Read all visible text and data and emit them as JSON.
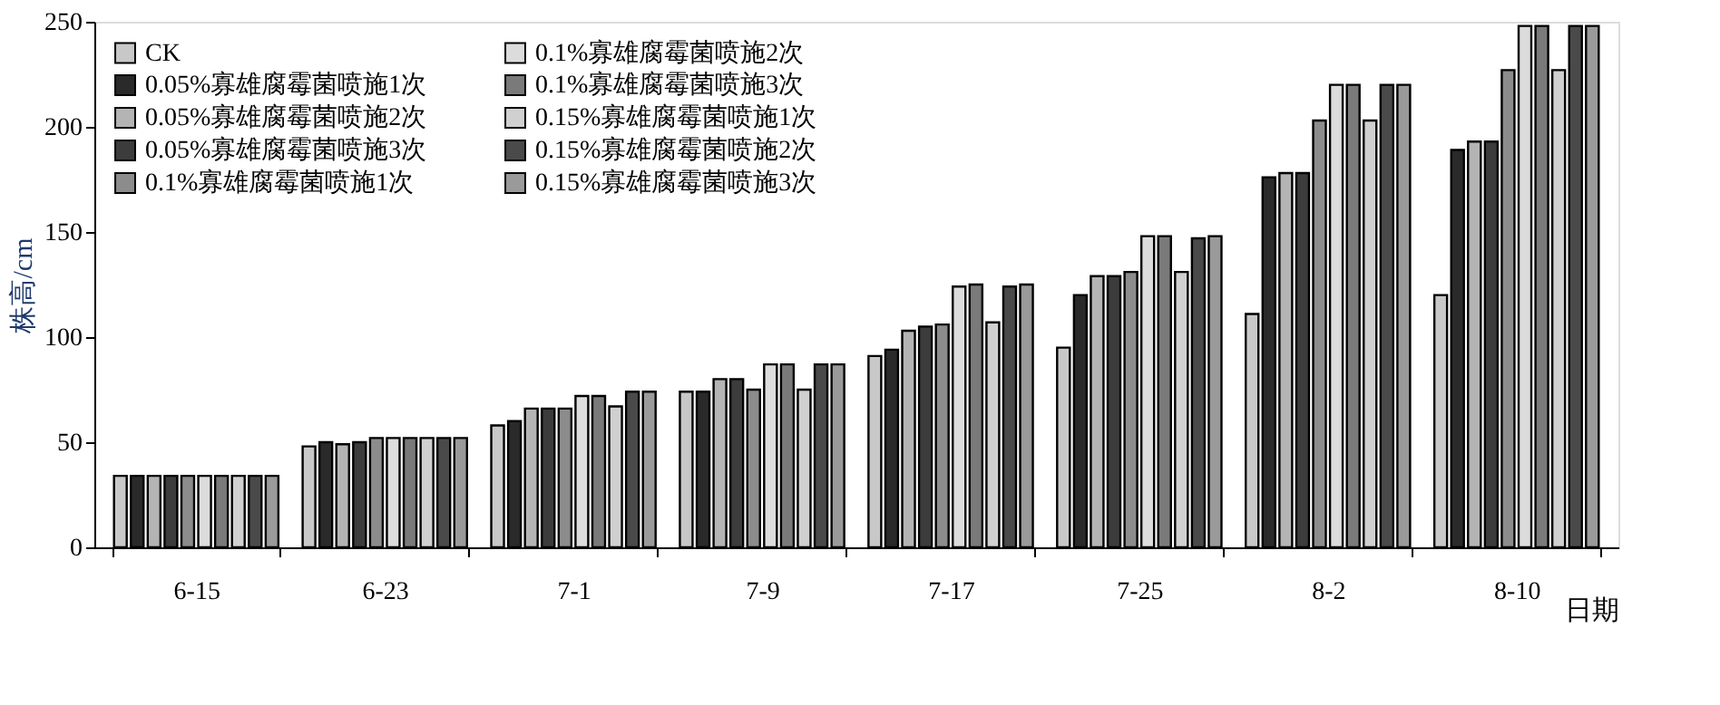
{
  "chart_data": {
    "type": "bar",
    "xlabel": "日期",
    "ylabel": "株高/cm",
    "categories": [
      "6-15",
      "6-23",
      "7-1",
      "7-9",
      "7-17",
      "7-25",
      "8-2",
      "8-10"
    ],
    "ylim": [
      0,
      250
    ],
    "yticks": [
      0,
      50,
      100,
      150,
      200,
      250
    ],
    "grid": false,
    "legend": "top left",
    "series": [
      {
        "name": "CK",
        "color": "#c8c8c8",
        "values": [
          34,
          48,
          58,
          74,
          91,
          95,
          111,
          120
        ]
      },
      {
        "name": "0.05%寡雄腐霉菌喷施1次",
        "color": "#2a2a2a",
        "values": [
          34,
          50,
          60,
          74,
          94,
          120,
          176,
          189
        ]
      },
      {
        "name": "0.05%寡雄腐霉菌喷施2次",
        "color": "#b4b4b4",
        "values": [
          34,
          49,
          66,
          80,
          103,
          129,
          178,
          193
        ]
      },
      {
        "name": "0.05%寡雄腐霉菌喷施3次",
        "color": "#3c3c3c",
        "values": [
          34,
          50,
          66,
          80,
          105,
          129,
          178,
          193
        ]
      },
      {
        "name": "0.1%寡雄腐霉菌喷施1次",
        "color": "#8c8c8c",
        "values": [
          34,
          52,
          66,
          75,
          106,
          131,
          203,
          227
        ]
      },
      {
        "name": "0.1%寡雄腐霉菌喷施2次",
        "color": "#dcdcdc",
        "values": [
          34,
          52,
          72,
          87,
          124,
          148,
          220,
          248
        ]
      },
      {
        "name": "0.1%寡雄腐霉菌喷施3次",
        "color": "#7a7a7a",
        "values": [
          34,
          52,
          72,
          87,
          125,
          148,
          220,
          248
        ]
      },
      {
        "name": "0.15%寡雄腐霉菌喷施1次",
        "color": "#d0d0d0",
        "values": [
          34,
          52,
          67,
          75,
          107,
          131,
          203,
          227
        ]
      },
      {
        "name": "0.15%寡雄腐霉菌喷施2次",
        "color": "#4a4a4a",
        "values": [
          34,
          52,
          74,
          87,
          124,
          147,
          220,
          248
        ]
      },
      {
        "name": "0.15%寡雄腐霉菌喷施3次",
        "color": "#9a9a9a",
        "values": [
          34,
          52,
          74,
          87,
          125,
          148,
          220,
          248
        ]
      }
    ]
  }
}
